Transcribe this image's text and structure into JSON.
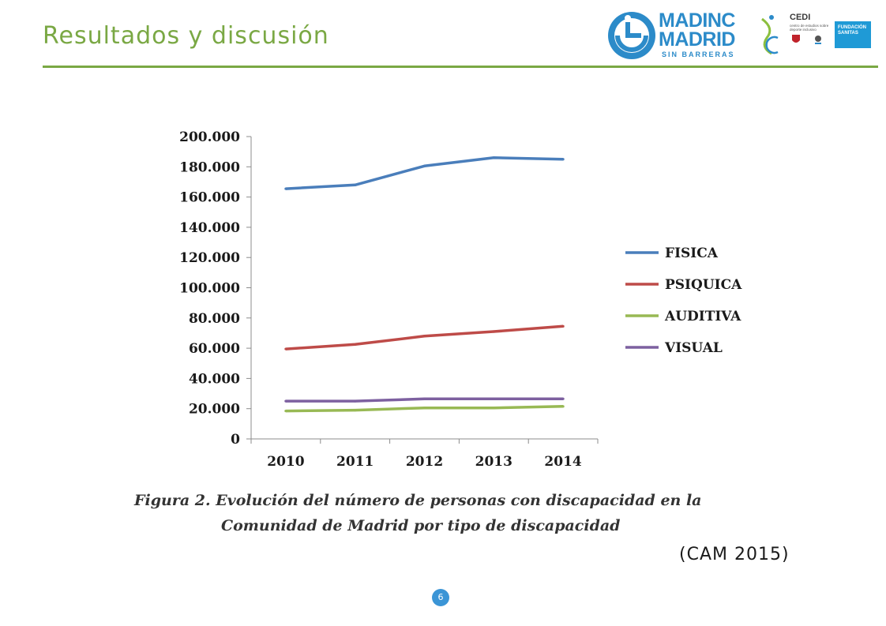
{
  "slide": {
    "title": "Resultados y discusión",
    "caption_line1": "Figura 2. Evolución del número de personas con discapacidad en la",
    "caption_line2": "Comunidad de Madrid por tipo de discapacidad",
    "source": "(CAM 2015)",
    "page_number": "6"
  },
  "logos": {
    "madinc_line1": "MADINC",
    "madinc_line2": "MADRID",
    "madinc_sub": "SIN BARRERAS",
    "cedi_label": "CEDI",
    "cedi_sub": "centro de estudios sobre deporte inclusivo",
    "sanitas_line1": "FUNDACIÓN",
    "sanitas_line2": "SANITAS"
  },
  "colors": {
    "accent": "#7aa844",
    "fisica": "#4a7ebb",
    "psiquica": "#be4b48",
    "auditiva": "#98b954",
    "visual": "#7d60a0",
    "badge": "#3b95d6"
  },
  "chart_data": {
    "type": "line",
    "x": [
      "2010",
      "2011",
      "2012",
      "2013",
      "2014"
    ],
    "y_ticks": [
      "0",
      "20.000",
      "40.000",
      "60.000",
      "80.000",
      "100.000",
      "120.000",
      "140.000",
      "160.000",
      "180.000",
      "200.000"
    ],
    "ylim": [
      0,
      200000
    ],
    "legend_position": "right",
    "grid": false,
    "series": [
      {
        "name": "FISICA",
        "values": [
          165500,
          168000,
          180500,
          186000,
          185000
        ],
        "color": "#4a7ebb"
      },
      {
        "name": "PSIQUICA",
        "values": [
          59500,
          62500,
          68000,
          71000,
          74500
        ],
        "color": "#be4b48"
      },
      {
        "name": "AUDITIVA",
        "values": [
          18500,
          19000,
          20500,
          20500,
          21500
        ],
        "color": "#98b954"
      },
      {
        "name": "VISUAL",
        "values": [
          25000,
          25000,
          26500,
          26500,
          26500
        ],
        "color": "#7d60a0"
      }
    ]
  }
}
